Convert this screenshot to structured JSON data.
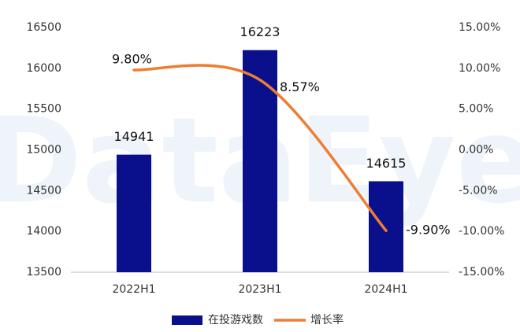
{
  "chart_data": {
    "type": "combo",
    "watermark": "DataEye",
    "categories": [
      "2022H1",
      "2023H1",
      "2024H1"
    ],
    "series": [
      {
        "name": "在投游戏数",
        "type": "bar",
        "color": "#0a0f8c",
        "values": [
          14941,
          16223,
          14615
        ]
      },
      {
        "name": "增长率",
        "type": "line",
        "color": "#ed7d31",
        "axis": "y2",
        "values": [
          9.8,
          8.57,
          -9.9
        ],
        "value_labels": [
          "9.80%",
          "8.57%",
          "-9.90%"
        ]
      }
    ],
    "ylim": [
      13500,
      16500
    ],
    "yticks": [
      13500,
      14000,
      14500,
      15000,
      15500,
      16000,
      16500
    ],
    "y2lim": [
      -15,
      15
    ],
    "y2ticks": [
      {
        "value": -15,
        "label": "-15.00%"
      },
      {
        "value": -10,
        "label": "-10.00%"
      },
      {
        "value": -5,
        "label": "-5.00%"
      },
      {
        "value": 0,
        "label": "0.00%"
      },
      {
        "value": 5,
        "label": "5.00%"
      },
      {
        "value": 10,
        "label": "10.00%"
      },
      {
        "value": 15,
        "label": "15.00%"
      }
    ],
    "grid": false,
    "legend": "bottom"
  }
}
